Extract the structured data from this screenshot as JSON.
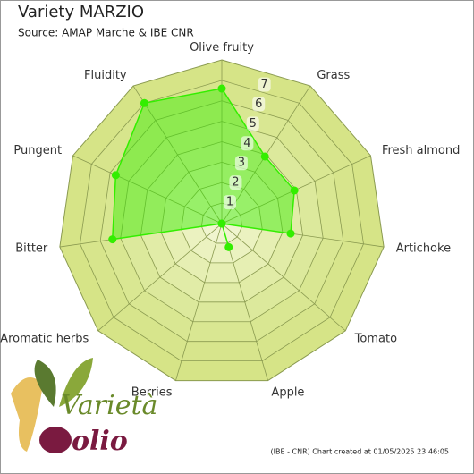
{
  "chart_data": {
    "type": "radar",
    "title": "Variety MARZIO",
    "subtitle": "Source: AMAP Marche & IBE CNR",
    "categories": [
      "Olive fruity",
      "Grass",
      "Fresh almond",
      "Artichoke",
      "Tomato",
      "Apple",
      "Berries",
      "Aromatic herbs",
      "Bitter",
      "Pungent",
      "Fluidity"
    ],
    "series": [
      {
        "name": "MARZIO",
        "color": "#33ee00",
        "values": [
          6.6,
          3.9,
          3.9,
          3.4,
          0,
          1.2,
          0,
          0,
          5.4,
          5.7,
          7.0
        ]
      }
    ],
    "ylim": [
      0,
      8
    ],
    "yticks": [
      1,
      2,
      3,
      4,
      5,
      6,
      7
    ],
    "grid": true,
    "footer": "(IBE - CNR) Chart created at 01/05/2025 23:46:05",
    "logo": {
      "top": "Varietà",
      "bottom": "olio"
    }
  }
}
